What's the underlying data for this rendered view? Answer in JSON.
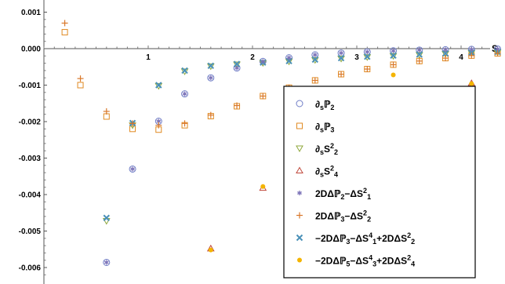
{
  "chart_data": {
    "type": "scatter",
    "xlabel": "S",
    "ylabel": "",
    "xlim": [
      -0.15,
      4.5
    ],
    "ylim": [
      -0.0063,
      0.0012
    ],
    "xticks": [
      1,
      2,
      3,
      4
    ],
    "yticks": [
      0.001,
      0.0,
      -0.001,
      -0.002,
      -0.003,
      -0.004,
      -0.005,
      -0.006
    ],
    "ytick_labels": [
      "0.001",
      "0.000",
      "-0.001",
      "-0.002",
      "-0.003",
      "-0.004",
      "-0.005",
      "-0.006"
    ],
    "grid": false,
    "legend_position": "bottom-right",
    "series": [
      {
        "name": "∂sℙ2",
        "name_parts": {
          "d": "∂",
          "sub1": "s",
          "main": "ℙ",
          "sub2": "2"
        },
        "marker": "open-circle",
        "color": "#6f7dc6",
        "x": [
          0.6,
          0.85,
          1.1,
          1.35,
          1.6,
          1.85,
          2.1,
          2.35,
          2.6,
          2.85,
          3.1,
          3.35,
          3.6,
          3.85,
          4.1,
          4.35
        ],
        "y": [
          -0.00586,
          -0.0033,
          -0.00199,
          -0.00124,
          -0.0008,
          -0.00053,
          -0.00035,
          -0.00025,
          -0.00017,
          -0.00012,
          -9e-05,
          -6e-05,
          -4e-05,
          -3e-05,
          -2e-05,
          -1e-05
        ]
      },
      {
        "name": "∂sℙ3",
        "name_parts": {
          "d": "∂",
          "sub1": "s",
          "main": "ℙ",
          "sub2": "3"
        },
        "marker": "open-square",
        "color": "#e08a22",
        "x": [
          0.2,
          0.35,
          0.6,
          0.85,
          1.1,
          1.35,
          1.6,
          1.85,
          2.1,
          2.35,
          2.6,
          2.85,
          3.1,
          3.35,
          3.6,
          3.85,
          4.1,
          4.35
        ],
        "y": [
          0.00045,
          -0.001,
          -0.00186,
          -0.0022,
          -0.00222,
          -0.0021,
          -0.00185,
          -0.00158,
          -0.0013,
          -0.00107,
          -0.00087,
          -0.0007,
          -0.00056,
          -0.00044,
          -0.00034,
          -0.00026,
          -0.00019,
          -0.00013
        ]
      },
      {
        "name": "∂sS²2",
        "name_parts": {
          "d": "∂",
          "sub1": "s",
          "main": "S",
          "sup": "2",
          "sub2": "2"
        },
        "marker": "open-triangle-down",
        "color": "#8fa83c",
        "x": [
          0.6,
          0.85,
          1.1,
          1.35,
          1.6,
          1.85,
          2.1,
          2.35,
          2.6,
          2.85,
          3.1,
          3.35,
          3.6,
          3.85,
          4.1,
          4.35
        ],
        "y": [
          -0.00472,
          -0.0021,
          -0.00102,
          -0.00062,
          -0.00048,
          -0.00043,
          -0.00039,
          -0.00035,
          -0.00031,
          -0.00027,
          -0.00023,
          -0.0002,
          -0.00017,
          -0.00014,
          -0.00012,
          -0.0001
        ]
      },
      {
        "name": "∂sS²4",
        "name_parts": {
          "d": "∂",
          "sub1": "s",
          "main": "S",
          "sup": "2",
          "sub2": "4"
        },
        "marker": "open-triangle-up",
        "color": "#c0493c",
        "x": [
          1.6,
          2.1,
          2.6,
          3.1,
          3.6,
          4.1
        ],
        "y": [
          -0.00548,
          -0.00382,
          -0.00266,
          -0.00186,
          -0.00132,
          -0.00095
        ]
      },
      {
        "name": "2DΔℙ2−ΔS²1",
        "name_parts": {
          "pre": "2DΔ",
          "main": "ℙ",
          "sub": "2",
          "mid": "−ΔS",
          "sup": "2",
          "sub2": "1"
        },
        "marker": "star",
        "color": "#7b72b8",
        "x": [
          0.6,
          0.85,
          1.1,
          1.35,
          1.6,
          1.85,
          2.1,
          2.35,
          2.6,
          2.85,
          3.1,
          3.35,
          3.6,
          3.85,
          4.1,
          4.35
        ],
        "y": [
          -0.00586,
          -0.0033,
          -0.00199,
          -0.00124,
          -0.0008,
          -0.00053,
          -0.00035,
          -0.00025,
          -0.00017,
          -0.00012,
          -9e-05,
          -6e-05,
          -4e-05,
          -3e-05,
          -2e-05,
          -1e-05
        ]
      },
      {
        "name": "2DΔℙ3−ΔS²2",
        "name_parts": {
          "pre": "2DΔ",
          "main": "ℙ",
          "sub": "3",
          "mid": "−ΔS",
          "sup": "2",
          "sub2": "2"
        },
        "marker": "plus",
        "color": "#d9782b",
        "x": [
          0.2,
          0.35,
          0.6,
          0.85,
          1.1,
          1.35,
          1.6,
          1.85,
          2.1,
          2.35,
          2.6,
          2.85,
          3.1,
          3.35,
          3.6,
          3.85,
          4.1,
          4.35
        ],
        "y": [
          0.0007,
          -0.00082,
          -0.00172,
          -0.00205,
          -0.0021,
          -0.00205,
          -0.00182,
          -0.00156,
          -0.0013,
          -0.00107,
          -0.00087,
          -0.0007,
          -0.00056,
          -0.00044,
          -0.00034,
          -0.00026,
          -0.00019,
          -0.00013
        ]
      },
      {
        "name": "−2DΔℙ3−ΔS⁴1+2DΔS²2",
        "name_parts": {
          "pre": "−2DΔ",
          "main": "ℙ",
          "sub": "3",
          "mid": "−ΔS",
          "sup": "4",
          "sub2": "1",
          "tail": "+2DΔS",
          "sup2": "2",
          "sub3": "2"
        },
        "marker": "x",
        "color": "#4a90b8",
        "x": [
          0.6,
          0.85,
          1.1,
          1.35,
          1.6,
          1.85,
          2.1,
          2.35,
          2.6,
          2.85,
          3.1,
          3.35,
          3.6,
          3.85,
          4.1,
          4.35
        ],
        "y": [
          -0.00464,
          -0.00204,
          -0.001,
          -0.0006,
          -0.00047,
          -0.00042,
          -0.00038,
          -0.00034,
          -0.0003,
          -0.00026,
          -0.00022,
          -0.00019,
          -0.00016,
          -0.00013,
          -0.00011,
          -9e-05
        ]
      },
      {
        "name": "−2DΔℙ5−ΔS⁴3+2DΔS²4",
        "name_parts": {
          "pre": "−2DΔ",
          "main": "ℙ",
          "sub": "5",
          "mid": "−ΔS",
          "sup": "4",
          "sub2": "3",
          "tail": "+2DΔS",
          "sup2": "2",
          "sub3": "4"
        },
        "marker": "filled-circle",
        "color": "#f4b400",
        "x": [
          1.6,
          2.1,
          2.6,
          3.1,
          3.6,
          4.1
        ],
        "y": [
          -0.00552,
          -0.00378,
          -0.00265,
          -0.00187,
          -0.00133,
          -0.00096
        ]
      }
    ],
    "extra_points": [
      {
        "series_index": 2,
        "x": 2.85,
        "y": -0.00135,
        "marker": "filled-circle",
        "color": "#f4b400"
      },
      {
        "series_index": 2,
        "x": 3.35,
        "y": -0.00072,
        "marker": "filled-circle",
        "color": "#f4b400"
      }
    ]
  }
}
